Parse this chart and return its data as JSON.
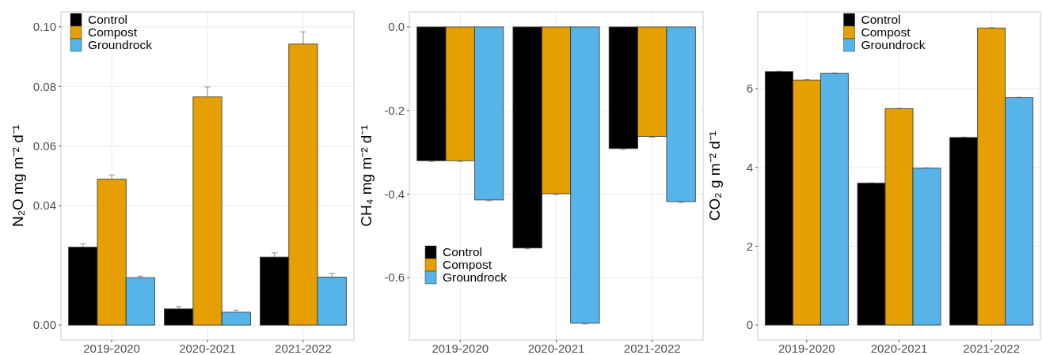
{
  "chart_data": [
    {
      "type": "bar",
      "ylabel": "N₂O mg m⁻² d⁻¹",
      "categories": [
        "2019-2020",
        "2020-2021",
        "2021-2022"
      ],
      "ylim": [
        -0.005,
        0.105
      ],
      "yticks": [
        {
          "value": 0,
          "label": "0.00"
        },
        0.04,
        {
          "value": 0.06,
          "label": "0.06"
        },
        0.08,
        {
          "value": 0.1,
          "label": "0.10"
        }
      ],
      "grid": true,
      "legend": "top left",
      "series": [
        {
          "name": "Control",
          "color": "#000000",
          "values": [
            0.0261,
            0.0054,
            0.0228
          ],
          "errors": [
            0.0012,
            0.0008,
            0.0014
          ]
        },
        {
          "name": "Compost",
          "color": "#e69f00",
          "values": [
            0.0489,
            0.0765,
            0.0942
          ],
          "errors": [
            0.0014,
            0.0033,
            0.0041
          ]
        },
        {
          "name": "Groundrock",
          "color": "#56b4e9",
          "values": [
            0.0159,
            0.0043,
            0.0161
          ],
          "errors": [
            0.0005,
            0.0007,
            0.0013
          ]
        }
      ]
    },
    {
      "type": "bar",
      "ylabel": "CH₄ mg m⁻² d⁻¹",
      "categories": [
        "2019-2020",
        "2020-2021",
        "2021-2022"
      ],
      "ylim": [
        -0.749,
        0.036
      ],
      "yticks": [
        {
          "value": -0.6,
          "label": "-0.6"
        },
        {
          "value": -0.4,
          "label": "-0.4"
        },
        {
          "value": -0.2,
          "label": "-0.2"
        },
        {
          "value": 0,
          "label": "0.0"
        }
      ],
      "grid": true,
      "legend": "bottom left",
      "series": [
        {
          "name": "Control",
          "color": "#000000",
          "values": [
            -0.32,
            -0.529,
            -0.291
          ],
          "errors": [
            0.002,
            0.002,
            0.002
          ]
        },
        {
          "name": "Compost",
          "color": "#e69f00",
          "values": [
            -0.32,
            -0.399,
            -0.262
          ],
          "errors": [
            0.002,
            0.002,
            0.002
          ]
        },
        {
          "name": "Groundrock",
          "color": "#56b4e9",
          "values": [
            -0.414,
            -0.709,
            -0.418
          ],
          "errors": [
            0.002,
            0.002,
            0.002
          ]
        }
      ]
    },
    {
      "type": "bar",
      "ylabel": "CO₂ g m⁻² d⁻¹",
      "categories": [
        "2019-2020",
        "2020-2021",
        "2021-2022"
      ],
      "ylim": [
        -0.38,
        7.95
      ],
      "yticks": [
        0,
        2,
        4,
        6
      ],
      "grid": true,
      "legend": "top",
      "series": [
        {
          "name": "Control",
          "color": "#000000",
          "values": [
            6.43,
            3.6,
            4.76
          ],
          "errors": [
            0.01,
            0.01,
            0.01
          ]
        },
        {
          "name": "Compost",
          "color": "#e69f00",
          "values": [
            6.22,
            5.49,
            7.54
          ],
          "errors": [
            0.01,
            0.01,
            0.01
          ]
        },
        {
          "name": "Groundrock",
          "color": "#56b4e9",
          "values": [
            6.39,
            3.98,
            5.77
          ],
          "errors": [
            0.01,
            0.01,
            0.01
          ]
        }
      ]
    }
  ]
}
